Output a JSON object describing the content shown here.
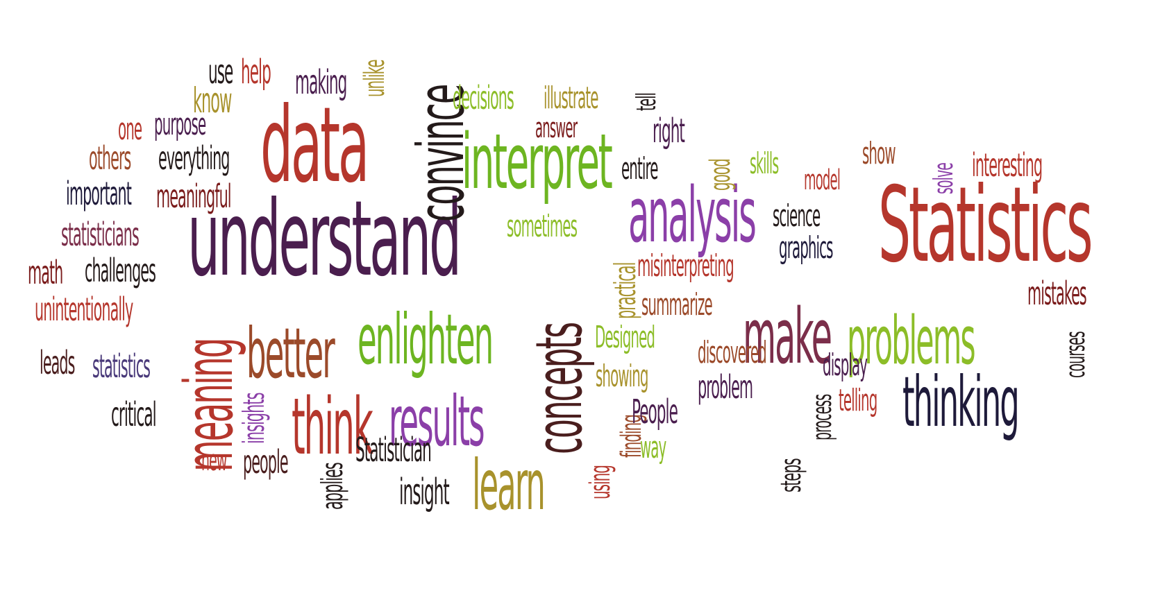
{
  "words": {
    "understand": "understand",
    "statistics_big": "Statistics",
    "data": "data",
    "convince": "convince",
    "interpret": "interpret",
    "analysis": "analysis",
    "enlighten": "enlighten",
    "better": "better",
    "think": "think",
    "results": "results",
    "concepts": "concepts",
    "learn": "learn",
    "meaning": "meaning",
    "make": "make",
    "problems": "problems",
    "thinking": "thinking",
    "use": "use",
    "help": "help",
    "know": "know",
    "making": "making",
    "unlike": "unlike",
    "one": "one",
    "purpose": "purpose",
    "others": "others",
    "everything": "everything",
    "important": "important",
    "meaningful": "meaningful",
    "statisticians": "statisticians",
    "math": "math",
    "challenges": "challenges",
    "unintentionally": "unintentionally",
    "leads": "leads",
    "statistics_small": "statistics",
    "critical": "critical",
    "insights": "insights",
    "new": "new",
    "people": "people",
    "applies": "applies",
    "statistician": "Statistician",
    "insight": "insight",
    "decisions": "decisions",
    "illustrate": "illustrate",
    "answer": "answer",
    "tell": "tell",
    "right": "right",
    "entire": "entire",
    "good": "good",
    "skills": "skills",
    "show": "show",
    "model": "model",
    "solve": "solve",
    "interesting": "interesting",
    "sometimes": "sometimes",
    "science": "science",
    "graphics": "graphics",
    "practical": "practical",
    "misinterpreting": "misinterpreting",
    "summarize": "summarize",
    "mistakes": "mistakes",
    "designed": "Designed",
    "discovered": "discovered",
    "display": "display",
    "courses": "courses",
    "showing": "showing",
    "problem": "problem",
    "process": "process",
    "telling": "telling",
    "finding": "finding",
    "people_cap": "People",
    "steps": "steps",
    "way": "way",
    "using": "using"
  },
  "colors": {
    "dark_purple": "#4a1e4e",
    "red": "#b5362c",
    "dark_red": "#7a1b1b",
    "rust": "#9b4a2a",
    "green": "#6db521",
    "purple": "#8b3fa8",
    "olive": "#a8922c",
    "navy": "#1e1a3a",
    "black": "#231a1a",
    "mauve": "#7b2e4a",
    "lime": "#8cbd28"
  }
}
